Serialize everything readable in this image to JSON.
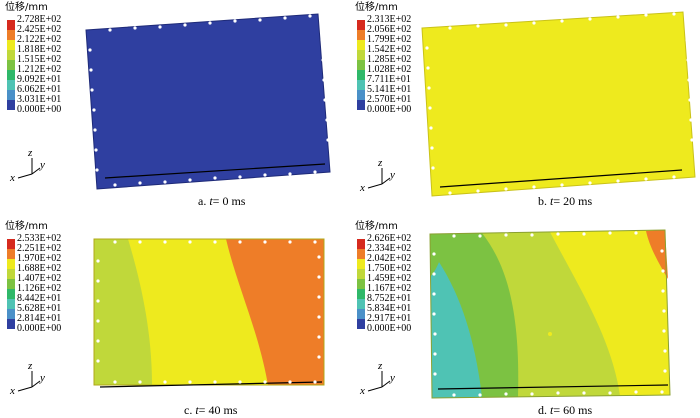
{
  "panels": [
    {
      "legend_title": "位移/mm",
      "legend_values": [
        "2.728E+02",
        "2.425E+02",
        "2.122E+02",
        "1.818E+02",
        "1.515E+02",
        "1.212E+02",
        "9.092E+01",
        "6.062E+01",
        "3.031E+01",
        "0.000E+00"
      ],
      "caption_prefix": "a.",
      "caption_var": "t",
      "caption_value": "= 0 ms",
      "fill_color": "#2f3fa0"
    },
    {
      "legend_title": "位移/mm",
      "legend_values": [
        "2.313E+02",
        "2.056E+02",
        "1.799E+02",
        "1.542E+02",
        "1.285E+02",
        "1.028E+02",
        "7.711E+01",
        "5.141E+01",
        "2.570E+01",
        "0.000E+00"
      ],
      "caption_prefix": "b.",
      "caption_var": "t",
      "caption_value": "= 20 ms",
      "fill_color": "#eeea1e"
    },
    {
      "legend_title": "位移/mm",
      "legend_values": [
        "2.533E+02",
        "2.251E+02",
        "1.970E+02",
        "1.688E+02",
        "1.407E+02",
        "1.126E+02",
        "8.442E+01",
        "5.628E+01",
        "2.814E+01",
        "0.000E+00"
      ],
      "caption_prefix": "c.",
      "caption_var": "t",
      "caption_value": "= 40 ms",
      "fill_color": "#e8e62a"
    },
    {
      "legend_title": "位移/mm",
      "legend_values": [
        "2.626E+02",
        "2.334E+02",
        "2.042E+02",
        "1.750E+02",
        "1.459E+02",
        "1.167E+02",
        "8.752E+01",
        "5.834E+01",
        "2.917E+01",
        "0.000E+00"
      ],
      "caption_prefix": "d.",
      "caption_var": "t",
      "caption_value": "= 60 ms",
      "fill_color": "#9cc93a"
    }
  ],
  "axis_labels": {
    "z": "z",
    "y": "y",
    "x": "x"
  },
  "colorbar_colors": [
    "#d62a1e",
    "#ee7d28",
    "#eeea1e",
    "#c0d83a",
    "#7cc242",
    "#2fb86a",
    "#4fc3b4",
    "#4a90c8",
    "#2f3fa0"
  ]
}
